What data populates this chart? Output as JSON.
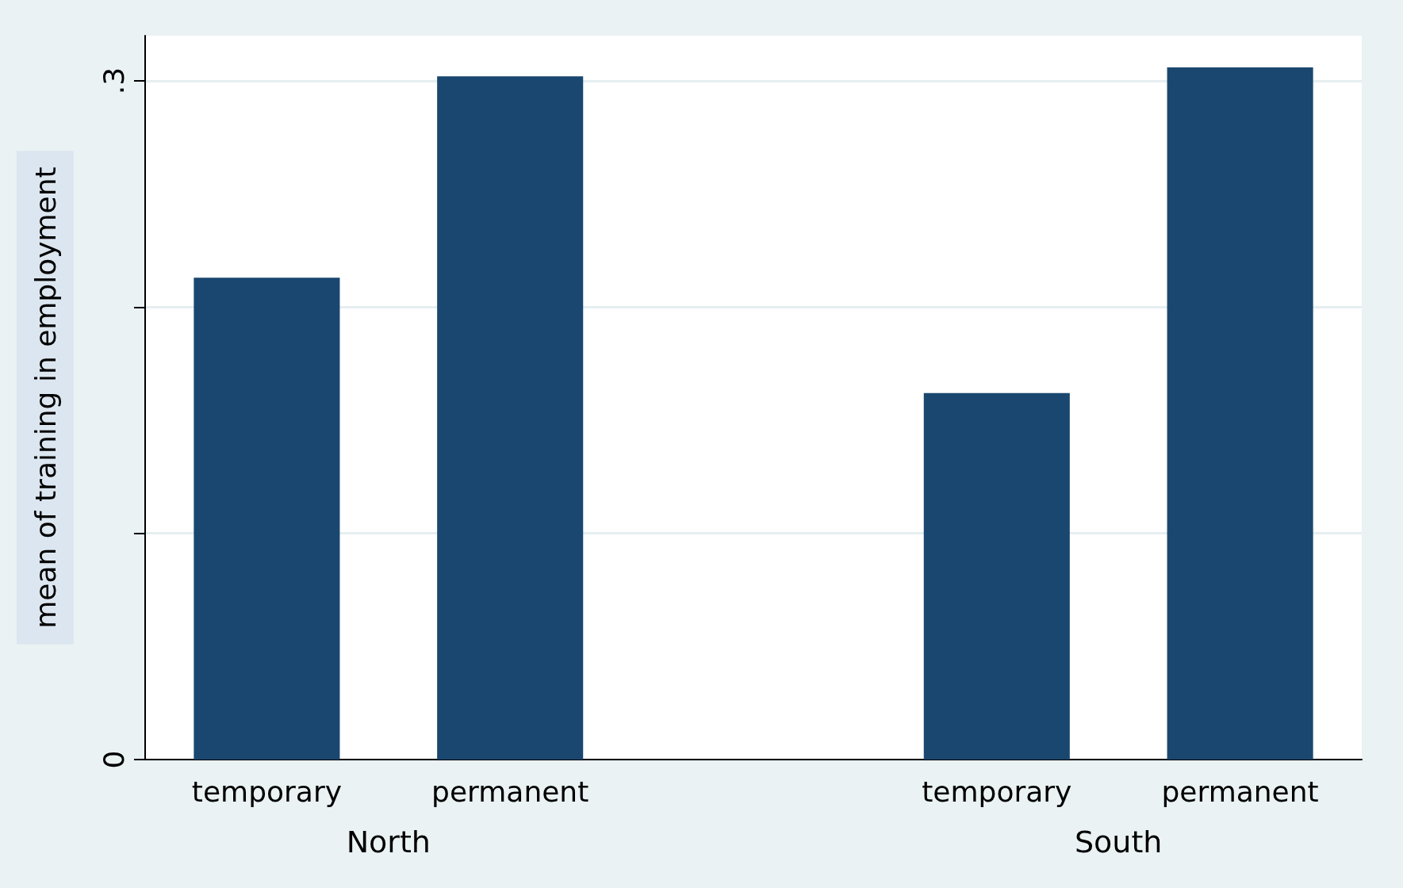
{
  "chart_data": {
    "type": "bar",
    "ylabel": "mean of training in employment",
    "categories": [
      "temporary",
      "permanent",
      null,
      "temporary",
      "permanent"
    ],
    "values": [
      0.213,
      0.302,
      null,
      0.162,
      0.306
    ],
    "color": "#1a476f",
    "ylim": [
      0,
      0.32
    ],
    "yticks": [
      0,
      {
        "value": 0.1,
        "label": null
      },
      {
        "value": 0.2,
        "label": null
      },
      {
        "value": 0.3,
        "label": ".3"
      }
    ],
    "grid": "y",
    "annotations": [
      "North",
      "South"
    ]
  }
}
